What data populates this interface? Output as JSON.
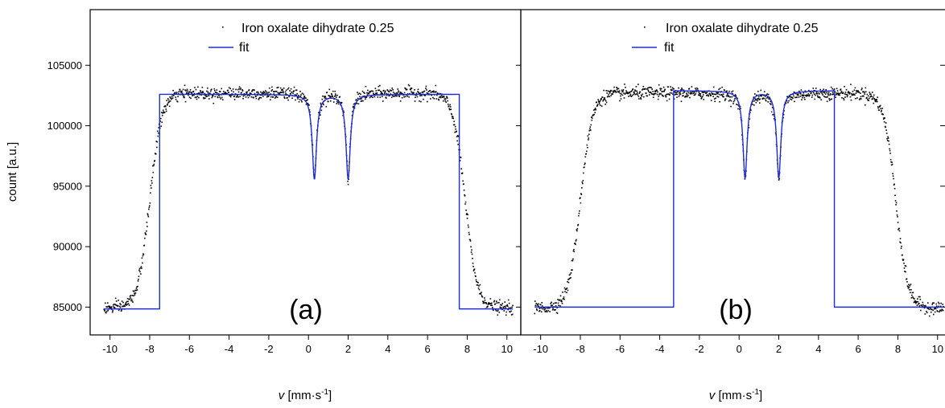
{
  "chart_data": [
    {
      "type": "scatter",
      "panel_label": "(a)",
      "xlabel_var": "v",
      "xlabel_unit_pre": " [mm·s",
      "xlabel_unit_exp": "-1",
      "xlabel_unit_post": "]",
      "ylabel": "count [a.u.]",
      "xlim": [
        -11,
        10.7
      ],
      "ylim": [
        82700,
        109600
      ],
      "x_ticks": [
        -10,
        -8,
        -6,
        -4,
        -2,
        0,
        2,
        4,
        6,
        8,
        10
      ],
      "y_ticks": [
        85000,
        90000,
        95000,
        100000,
        105000
      ],
      "legend": {
        "placement": "top-center",
        "entries": [
          "Iron oxalate dihydrate 0.25",
          "fit"
        ]
      },
      "grid": false,
      "series": [
        {
          "name": "Iron oxalate dihydrate 0.25",
          "kind": "points",
          "color": "#000000",
          "model": {
            "baseline": 84900,
            "plateau": 102700,
            "left_edge": -8.0,
            "right_edge": 7.9,
            "edge_width": 0.3,
            "dips": [
              {
                "center": 0.3,
                "depth": 7000,
                "hwhm": 0.13
              },
              {
                "center": 2.0,
                "depth": 7000,
                "hwhm": 0.13
              }
            ],
            "x_range": [
              -10.3,
              10.3
            ],
            "noise": 260,
            "n_points": 1024
          }
        },
        {
          "name": "fit",
          "kind": "line",
          "color": "#1f2bd6",
          "x": [
            -10.3,
            -7.5,
            -7.5,
            0.3,
            2.0,
            7.6,
            7.6,
            10.3
          ],
          "y": [
            84850,
            84850,
            102600,
            95600,
            95600,
            102700,
            84850,
            84850
          ],
          "model": {
            "baseline": 84850,
            "plateau": 102600,
            "left_step": -7.5,
            "right_step": 7.6,
            "dips": [
              {
                "center": 0.3,
                "depth": 7000,
                "hwhm": 0.13
              },
              {
                "center": 2.0,
                "depth": 7000,
                "hwhm": 0.13
              }
            ]
          }
        }
      ]
    },
    {
      "type": "scatter",
      "panel_label": "(b)",
      "xlabel_var": "v",
      "xlabel_unit_pre": " [mm·s",
      "xlabel_unit_exp": "-1",
      "xlabel_unit_post": "]",
      "ylabel": "",
      "xlim": [
        -11,
        10.7
      ],
      "ylim": [
        82700,
        109600
      ],
      "x_ticks": [
        -10,
        -8,
        -6,
        -4,
        -2,
        0,
        2,
        4,
        6,
        8,
        10
      ],
      "y_ticks": [
        85000,
        90000,
        95000,
        100000,
        105000
      ],
      "legend": {
        "placement": "top-center",
        "entries": [
          "Iron oxalate dihydrate 0.25",
          "fit"
        ]
      },
      "grid": false,
      "series": [
        {
          "name": "Iron oxalate dihydrate 0.25",
          "kind": "points",
          "color": "#000000",
          "model": {
            "baseline": 84900,
            "plateau": 102700,
            "left_edge": -8.0,
            "right_edge": 7.9,
            "edge_width": 0.3,
            "dips": [
              {
                "center": 0.3,
                "depth": 7000,
                "hwhm": 0.13
              },
              {
                "center": 2.0,
                "depth": 7000,
                "hwhm": 0.13
              }
            ],
            "x_range": [
              -10.3,
              10.3
            ],
            "noise": 260,
            "n_points": 1024
          }
        },
        {
          "name": "fit",
          "kind": "line",
          "color": "#1f2bd6",
          "x": [
            -10.3,
            -3.3,
            -3.3,
            0.3,
            2.0,
            4.8,
            4.8,
            10.3
          ],
          "y": [
            85000,
            85000,
            102900,
            95700,
            95700,
            102900,
            85000,
            85000
          ],
          "model": {
            "baseline": 85000,
            "plateau": 102900,
            "left_step": -3.3,
            "right_step": 4.8,
            "dips": [
              {
                "center": 0.3,
                "depth": 7200,
                "hwhm": 0.13
              },
              {
                "center": 2.0,
                "depth": 7200,
                "hwhm": 0.13
              }
            ]
          }
        }
      ]
    }
  ]
}
